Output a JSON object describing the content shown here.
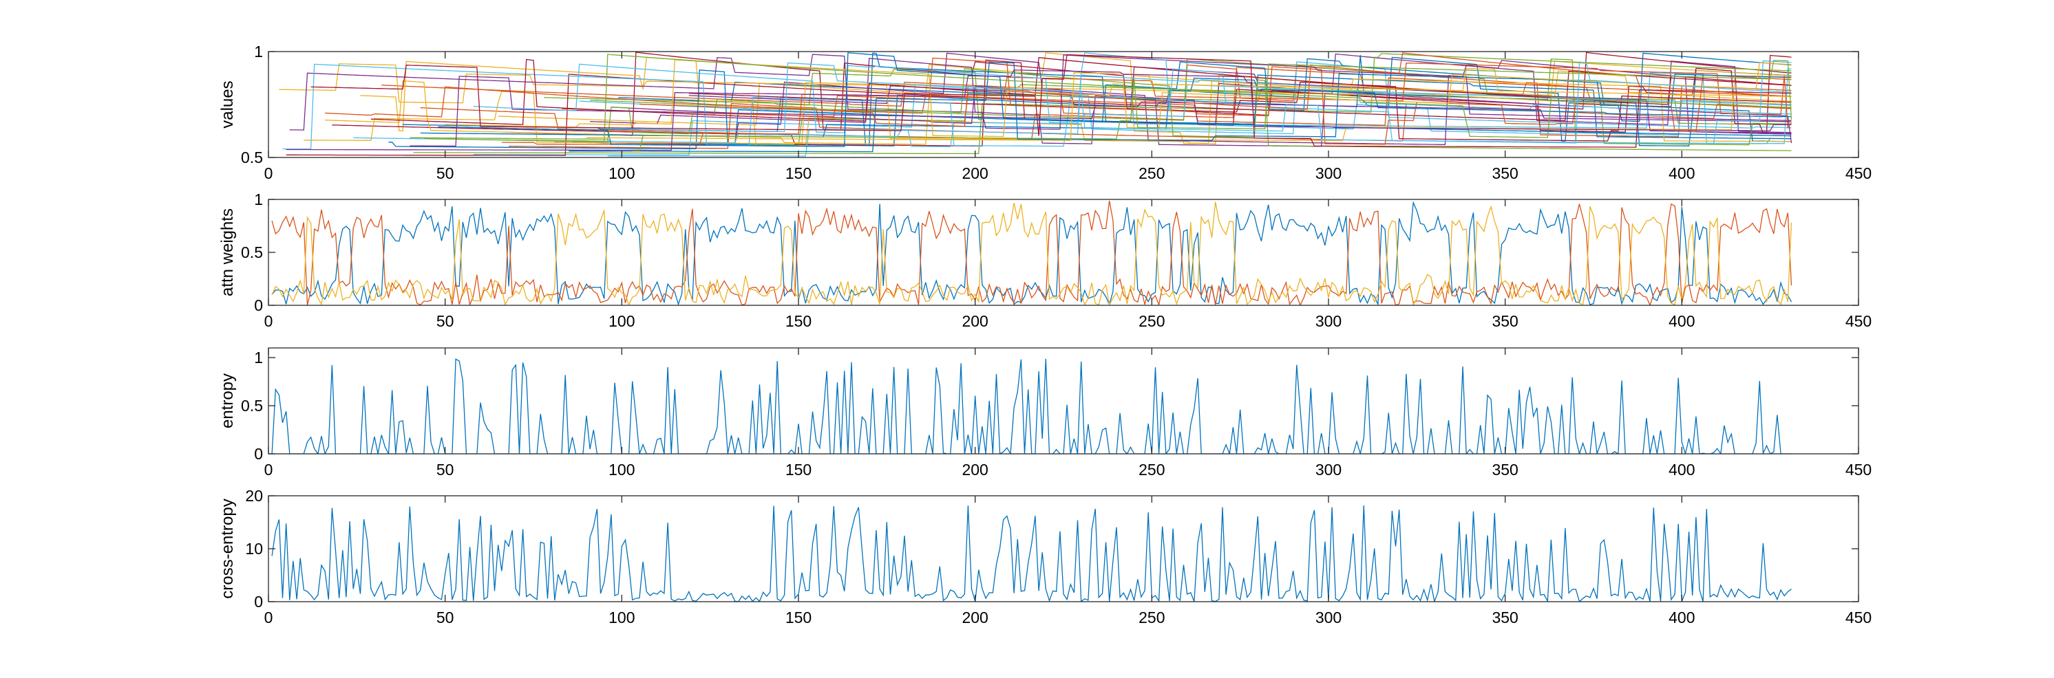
{
  "chart_data": [
    {
      "type": "line",
      "ylabel": "values",
      "xlim": [
        0,
        450
      ],
      "ylim": [
        0.5,
        1
      ],
      "xticks": [
        0,
        50,
        100,
        150,
        200,
        250,
        300,
        350,
        400,
        450
      ],
      "yticks": [
        0.5,
        1
      ],
      "ytick_labels": [
        "0.5",
        "1"
      ],
      "n_samples": 431,
      "series_count": 48,
      "style": "many-staircase-decaying",
      "colors": [
        "#0072BD",
        "#D95319",
        "#EDB120",
        "#7E2F8E",
        "#77AC30",
        "#4DBEEE",
        "#A2142F"
      ],
      "grid": false
    },
    {
      "type": "line",
      "ylabel": "attn weights",
      "xlim": [
        0,
        450
      ],
      "ylim": [
        0,
        1
      ],
      "xticks": [
        0,
        50,
        100,
        150,
        200,
        250,
        300,
        350,
        400,
        450
      ],
      "yticks": [
        0,
        0.5,
        1
      ],
      "ytick_labels": [
        "0",
        "0.5",
        "1"
      ],
      "n_samples": 431,
      "series_count": 3,
      "style": "softmax-switching",
      "colors": [
        "#0072BD",
        "#D95319",
        "#EDB120"
      ],
      "grid": false
    },
    {
      "type": "line",
      "ylabel": "entropy",
      "xlim": [
        0,
        450
      ],
      "ylim": [
        0,
        1.1
      ],
      "xticks": [
        0,
        50,
        100,
        150,
        200,
        250,
        300,
        350,
        400,
        450
      ],
      "yticks": [
        0,
        0.5,
        1
      ],
      "ytick_labels": [
        "0",
        "0.5",
        "1"
      ],
      "n_samples": 431,
      "series_count": 1,
      "style": "spiky-entropy",
      "colors": [
        "#0072BD"
      ],
      "grid": false
    },
    {
      "type": "line",
      "ylabel": "cross-entropy",
      "xlim": [
        0,
        450
      ],
      "ylim": [
        0,
        20
      ],
      "xticks": [
        0,
        50,
        100,
        150,
        200,
        250,
        300,
        350,
        400,
        450
      ],
      "yticks": [
        0,
        10,
        20
      ],
      "ytick_labels": [
        "0",
        "10",
        "20"
      ],
      "n_samples": 431,
      "series_count": 1,
      "style": "spiky-cross-entropy",
      "colors": [
        "#0072BD"
      ],
      "grid": false
    }
  ]
}
